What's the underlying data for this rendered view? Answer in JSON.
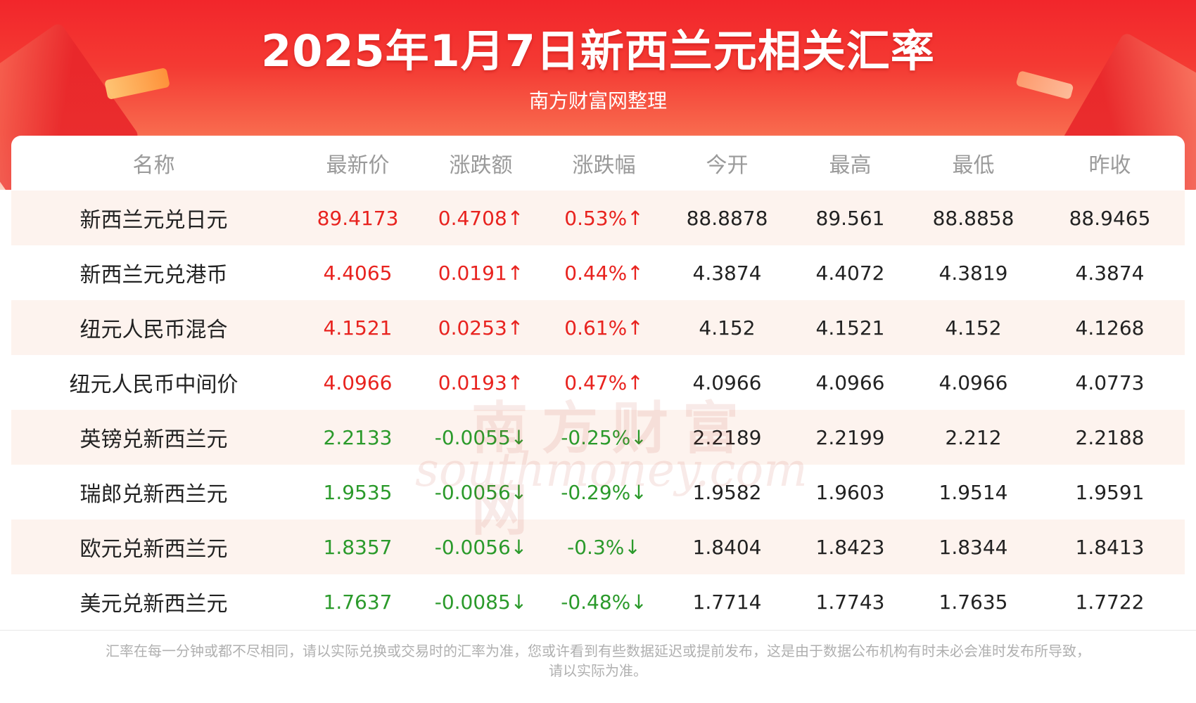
{
  "header": {
    "title": "2025年1月7日新西兰元相关汇率",
    "subtitle": "南方财富网整理"
  },
  "table": {
    "columns": [
      "名称",
      "最新价",
      "涨跌额",
      "涨跌幅",
      "今开",
      "最高",
      "最低",
      "昨收"
    ],
    "rows": [
      {
        "name": "新西兰元兑日元",
        "latest": "89.4173",
        "change": "0.4708↑",
        "pct": "0.53%↑",
        "open": "88.8878",
        "high": "89.561",
        "low": "88.8858",
        "prev_close": "88.9465",
        "direction": "up"
      },
      {
        "name": "新西兰元兑港币",
        "latest": "4.4065",
        "change": "0.0191↑",
        "pct": "0.44%↑",
        "open": "4.3874",
        "high": "4.4072",
        "low": "4.3819",
        "prev_close": "4.3874",
        "direction": "up"
      },
      {
        "name": "纽元人民币混合",
        "latest": "4.1521",
        "change": "0.0253↑",
        "pct": "0.61%↑",
        "open": "4.152",
        "high": "4.1521",
        "low": "4.152",
        "prev_close": "4.1268",
        "direction": "up"
      },
      {
        "name": "纽元人民币中间价",
        "latest": "4.0966",
        "change": "0.0193↑",
        "pct": "0.47%↑",
        "open": "4.0966",
        "high": "4.0966",
        "low": "4.0966",
        "prev_close": "4.0773",
        "direction": "up"
      },
      {
        "name": "英镑兑新西兰元",
        "latest": "2.2133",
        "change": "-0.0055↓",
        "pct": "-0.25%↓",
        "open": "2.2189",
        "high": "2.2199",
        "low": "2.212",
        "prev_close": "2.2188",
        "direction": "down"
      },
      {
        "name": "瑞郎兑新西兰元",
        "latest": "1.9535",
        "change": "-0.0056↓",
        "pct": "-0.29%↓",
        "open": "1.9582",
        "high": "1.9603",
        "low": "1.9514",
        "prev_close": "1.9591",
        "direction": "down"
      },
      {
        "name": "欧元兑新西兰元",
        "latest": "1.8357",
        "change": "-0.0056↓",
        "pct": "-0.3%↓",
        "open": "1.8404",
        "high": "1.8423",
        "low": "1.8344",
        "prev_close": "1.8413",
        "direction": "down"
      },
      {
        "name": "美元兑新西兰元",
        "latest": "1.7637",
        "change": "-0.0085↓",
        "pct": "-0.48%↓",
        "open": "1.7714",
        "high": "1.7743",
        "low": "1.7635",
        "prev_close": "1.7722",
        "direction": "down"
      }
    ]
  },
  "watermark": {
    "cn": "南方财富网",
    "en": "southmoney.com"
  },
  "footer": {
    "note_line1": "汇率在每一分钟或都不尽相同，请以实际兑换或交易时的汇率为准，您或许看到有些数据延迟或提前发布，这是由于数据公布机构有时未必会准时发布所导致，",
    "note_line2": "请以实际为准。"
  },
  "colors": {
    "up": "#e8231f",
    "down": "#2b9a2b",
    "banner": "#f2262b"
  }
}
